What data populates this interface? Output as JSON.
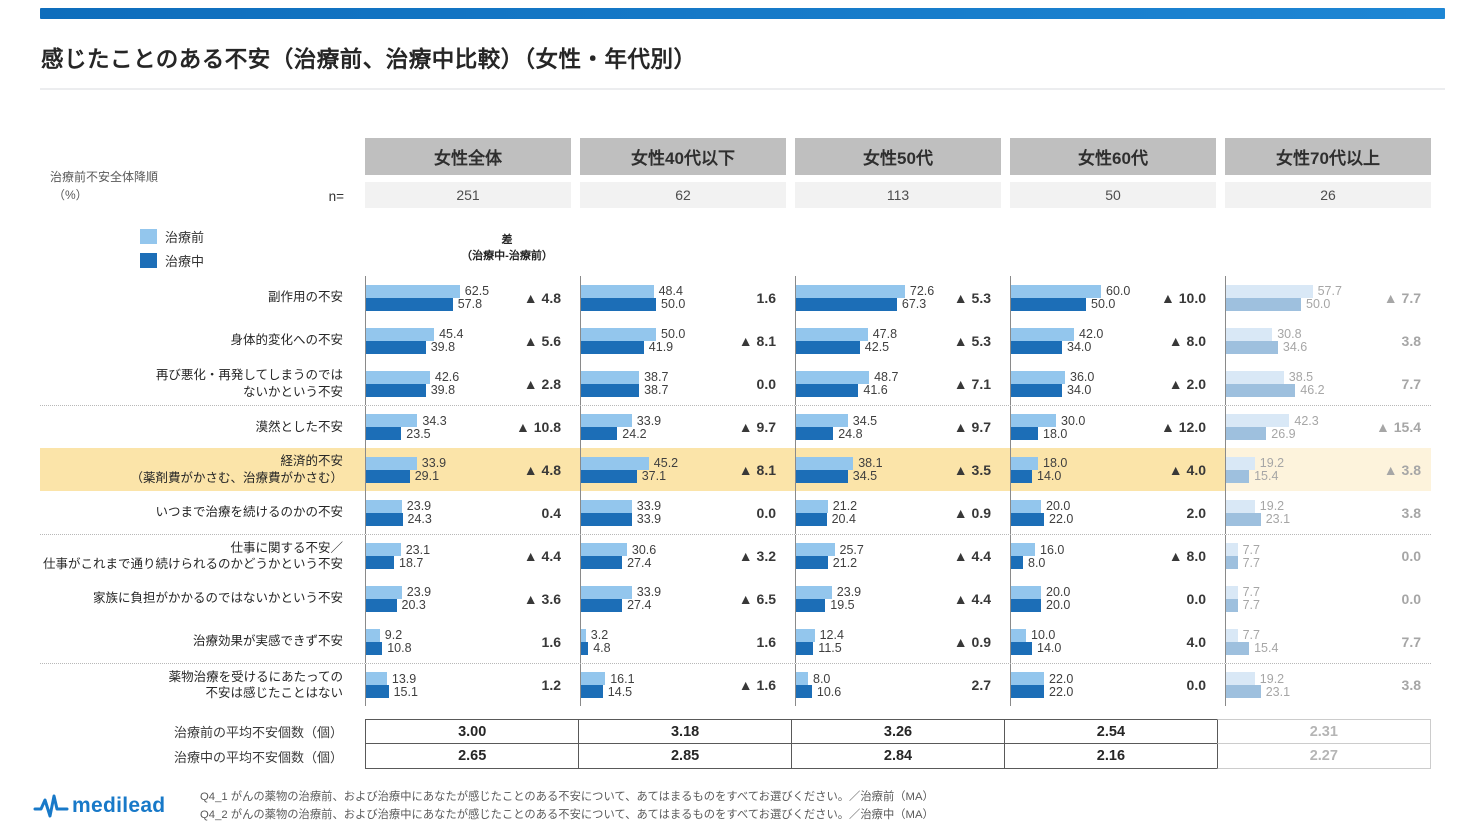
{
  "page": {
    "title": "感じたことのある不安（治療前、治療中比較）（女性・年代別）"
  },
  "meta": {
    "sort_note": "治療前不安全体降順",
    "unit": "（%）",
    "n_label": "n=",
    "diff_header": "差\n（治療中-治療前）"
  },
  "legend": {
    "pre": "治療前",
    "mid": "治療中"
  },
  "chart_data": {
    "type": "bar",
    "orientation": "horizontal",
    "unit": "%",
    "title": "感じたことのある不安（治療前、治療中比較）（女性・年代別）",
    "series_names": [
      "治療前",
      "治療中"
    ],
    "value_range": [
      0,
      80
    ],
    "grid": false,
    "colors": {
      "pre": "#93C6ED",
      "mid": "#1C6EB7",
      "pre_faded": "#D9E8F6",
      "mid_faded": "#9EC0DE",
      "highlight": "#FBE4A9",
      "highlight_faded": "#FDF3DC",
      "accent": "#1377C6"
    },
    "categories": [
      "副作用の不安",
      "身体的変化への不安",
      "再び悪化・再発してしまうのでは\nないかという不安",
      "漠然とした不安",
      "経済的不安\n（薬剤費がかさむ、治療費がかさむ）",
      "いつまで治療を続けるのかの不安",
      "仕事に関する不安／\n仕事がこれまで通り続けられるのかどうかという不安",
      "家族に負担がかかるのではないかという不安",
      "治療効果が実感できず不安",
      "薬物治療を受けるにあたっての\n不安は感じたことはない"
    ],
    "groups": [
      {
        "name": "女性全体",
        "n": "251",
        "faded": false,
        "pre": [
          "62.5",
          "45.4",
          "42.6",
          "34.3",
          "33.9",
          "23.9",
          "23.1",
          "23.9",
          "9.2",
          "13.9"
        ],
        "mid": [
          "57.8",
          "39.8",
          "39.8",
          "23.5",
          "29.1",
          "24.3",
          "18.7",
          "20.3",
          "10.8",
          "15.1"
        ],
        "diff": [
          "▲ 4.8",
          "▲ 5.6",
          "▲ 2.8",
          "▲ 10.8",
          "▲ 4.8",
          "0.4",
          "▲ 4.4",
          "▲ 3.6",
          "1.6",
          "1.2"
        ]
      },
      {
        "name": "女性40代以下",
        "n": "62",
        "faded": false,
        "pre": [
          "48.4",
          "50.0",
          "38.7",
          "33.9",
          "45.2",
          "33.9",
          "30.6",
          "33.9",
          "3.2",
          "16.1"
        ],
        "mid": [
          "50.0",
          "41.9",
          "38.7",
          "24.2",
          "37.1",
          "33.9",
          "27.4",
          "27.4",
          "4.8",
          "14.5"
        ],
        "diff": [
          "1.6",
          "▲ 8.1",
          "0.0",
          "▲ 9.7",
          "▲ 8.1",
          "0.0",
          "▲ 3.2",
          "▲ 6.5",
          "1.6",
          "▲ 1.6"
        ]
      },
      {
        "name": "女性50代",
        "n": "113",
        "faded": false,
        "pre": [
          "72.6",
          "47.8",
          "48.7",
          "34.5",
          "38.1",
          "21.2",
          "25.7",
          "23.9",
          "12.4",
          "8.0"
        ],
        "mid": [
          "67.3",
          "42.5",
          "41.6",
          "24.8",
          "34.5",
          "20.4",
          "21.2",
          "19.5",
          "11.5",
          "10.6"
        ],
        "diff": [
          "▲ 5.3",
          "▲ 5.3",
          "▲ 7.1",
          "▲ 9.7",
          "▲ 3.5",
          "▲ 0.9",
          "▲ 4.4",
          "▲ 4.4",
          "▲ 0.9",
          "2.7"
        ]
      },
      {
        "name": "女性60代",
        "n": "50",
        "faded": false,
        "pre": [
          "60.0",
          "42.0",
          "36.0",
          "30.0",
          "18.0",
          "20.0",
          "16.0",
          "20.0",
          "10.0",
          "22.0"
        ],
        "mid": [
          "50.0",
          "34.0",
          "34.0",
          "18.0",
          "14.0",
          "22.0",
          "8.0",
          "20.0",
          "14.0",
          "22.0"
        ],
        "diff": [
          "▲ 10.0",
          "▲ 8.0",
          "▲ 2.0",
          "▲ 12.0",
          "▲ 4.0",
          "2.0",
          "▲ 8.0",
          "0.0",
          "4.0",
          "0.0"
        ]
      },
      {
        "name": "女性70代以上",
        "n": "26",
        "faded": true,
        "pre": [
          "57.7",
          "30.8",
          "38.5",
          "42.3",
          "19.2",
          "19.2",
          "7.7",
          "7.7",
          "7.7",
          "19.2"
        ],
        "mid": [
          "50.0",
          "34.6",
          "46.2",
          "26.9",
          "15.4",
          "23.1",
          "7.7",
          "7.7",
          "15.4",
          "23.1"
        ],
        "diff": [
          "▲ 7.7",
          "3.8",
          "7.7",
          "▲ 15.4",
          "▲ 3.8",
          "3.8",
          "0.0",
          "0.0",
          "7.7",
          "3.8"
        ]
      }
    ]
  },
  "layout_flags": {
    "highlight_row": 4,
    "separator_rows": [
      3,
      6,
      9
    ]
  },
  "averages": {
    "pre_label": "治療前の平均不安個数（個）",
    "mid_label": "治療中の平均不安個数（個）",
    "pre": [
      "3.00",
      "3.18",
      "3.26",
      "2.54",
      "2.31"
    ],
    "mid": [
      "2.65",
      "2.85",
      "2.84",
      "2.16",
      "2.27"
    ]
  },
  "footer": {
    "logo": "medilead",
    "q1": "Q4_1  がんの薬物の治療前、および治療中にあなたが感じたことのある不安について、あてはまるものをすべてお選びください。／治療前（MA）",
    "q2": "Q4_2  がんの薬物の治療前、および治療中にあなたが感じたことのある不安について、あてはまるものをすべてお選びください。／治療中（MA）"
  }
}
